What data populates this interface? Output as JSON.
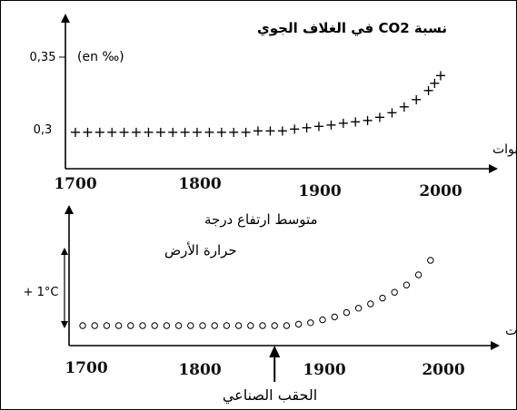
{
  "chart_data": [
    {
      "type": "scatter",
      "marker": "plus",
      "ylabel": "نسبة CO2 في الغلاف الجوي",
      "ylabel_unit": "(en ‰)",
      "xlabel": "السنوات",
      "x_tick_labels": [
        "1700",
        "1800",
        "1900",
        "2000"
      ],
      "y_tick_labels": [
        "0,3",
        "0,35"
      ],
      "xlim": [
        1700,
        2000
      ],
      "ylim": [
        0.3,
        0.35
      ],
      "grid": false,
      "points": [
        {
          "x": 1700,
          "y": 0.3
        },
        {
          "x": 1710,
          "y": 0.3
        },
        {
          "x": 1720,
          "y": 0.3
        },
        {
          "x": 1730,
          "y": 0.3
        },
        {
          "x": 1740,
          "y": 0.3
        },
        {
          "x": 1750,
          "y": 0.3
        },
        {
          "x": 1760,
          "y": 0.3
        },
        {
          "x": 1770,
          "y": 0.3
        },
        {
          "x": 1780,
          "y": 0.3
        },
        {
          "x": 1790,
          "y": 0.3
        },
        {
          "x": 1800,
          "y": 0.3
        },
        {
          "x": 1810,
          "y": 0.3
        },
        {
          "x": 1820,
          "y": 0.3
        },
        {
          "x": 1830,
          "y": 0.3
        },
        {
          "x": 1840,
          "y": 0.3
        },
        {
          "x": 1850,
          "y": 0.301
        },
        {
          "x": 1860,
          "y": 0.301
        },
        {
          "x": 1870,
          "y": 0.301
        },
        {
          "x": 1880,
          "y": 0.302
        },
        {
          "x": 1890,
          "y": 0.303
        },
        {
          "x": 1900,
          "y": 0.304
        },
        {
          "x": 1910,
          "y": 0.305
        },
        {
          "x": 1920,
          "y": 0.306
        },
        {
          "x": 1930,
          "y": 0.307
        },
        {
          "x": 1940,
          "y": 0.308
        },
        {
          "x": 1950,
          "y": 0.31
        },
        {
          "x": 1960,
          "y": 0.313
        },
        {
          "x": 1970,
          "y": 0.317
        },
        {
          "x": 1980,
          "y": 0.322
        },
        {
          "x": 1990,
          "y": 0.328
        },
        {
          "x": 1995,
          "y": 0.333
        },
        {
          "x": 2000,
          "y": 0.338
        }
      ]
    },
    {
      "type": "scatter",
      "marker": "circle",
      "ylabel_lines": [
        "متوسط ارتفاع درجة",
        "حرارة الأرض"
      ],
      "xlabel": "السنوات",
      "x_tick_labels": [
        "1700",
        "1800",
        "1900",
        "2000"
      ],
      "y_scale_label": "+ 1°C",
      "xlim": [
        1700,
        2000
      ],
      "ylim": [
        0,
        1
      ],
      "grid": false,
      "annotation": {
        "label": "الحقب الصناعي",
        "x": 1860
      },
      "points": [
        {
          "x": 1700,
          "y": 0.0
        },
        {
          "x": 1710,
          "y": 0.0
        },
        {
          "x": 1720,
          "y": 0.0
        },
        {
          "x": 1730,
          "y": 0.0
        },
        {
          "x": 1740,
          "y": 0.0
        },
        {
          "x": 1750,
          "y": 0.0
        },
        {
          "x": 1760,
          "y": 0.0
        },
        {
          "x": 1770,
          "y": 0.0
        },
        {
          "x": 1780,
          "y": 0.0
        },
        {
          "x": 1790,
          "y": 0.0
        },
        {
          "x": 1800,
          "y": 0.0
        },
        {
          "x": 1810,
          "y": 0.0
        },
        {
          "x": 1820,
          "y": 0.0
        },
        {
          "x": 1830,
          "y": 0.0
        },
        {
          "x": 1840,
          "y": 0.0
        },
        {
          "x": 1850,
          "y": 0.0
        },
        {
          "x": 1860,
          "y": 0.0
        },
        {
          "x": 1870,
          "y": 0.0
        },
        {
          "x": 1880,
          "y": 0.01
        },
        {
          "x": 1890,
          "y": 0.02
        },
        {
          "x": 1900,
          "y": 0.04
        },
        {
          "x": 1910,
          "y": 0.06
        },
        {
          "x": 1920,
          "y": 0.09
        },
        {
          "x": 1930,
          "y": 0.12
        },
        {
          "x": 1940,
          "y": 0.15
        },
        {
          "x": 1950,
          "y": 0.19
        },
        {
          "x": 1960,
          "y": 0.23
        },
        {
          "x": 1970,
          "y": 0.28
        },
        {
          "x": 1980,
          "y": 0.35
        },
        {
          "x": 1990,
          "y": 0.45
        }
      ]
    }
  ]
}
